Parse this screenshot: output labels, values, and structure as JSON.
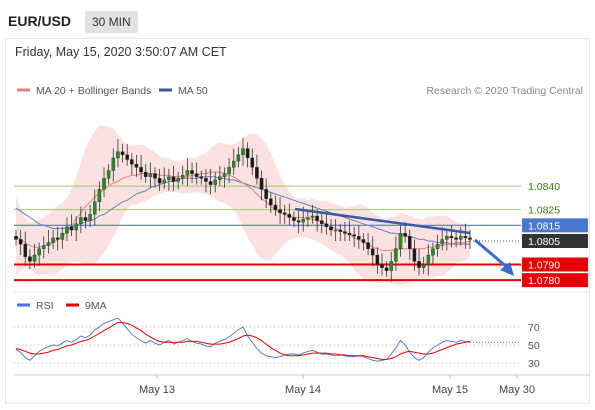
{
  "header": {
    "pair": "EUR/USD",
    "timeframe": "30 MIN",
    "datetime": "Friday, May 15, 2020 3:50:07 AM CET"
  },
  "legend": {
    "ma20_bb": "MA 20 + Bollinger Bands",
    "ma50": "MA 50",
    "credit": "Research © 2020 Trading Central",
    "rsi": "RSI",
    "rsi_ma": "9MA"
  },
  "colors": {
    "candle": "#2a8a2a",
    "ma20": "#e88080",
    "bollinger_fill": "#fbdcdc",
    "ma50": "#7080b8",
    "green_level": "#9ccb6a",
    "blue_level": "#4a78d0",
    "red_level": "#e80000",
    "current": "#333333",
    "rsi": "#4a6fd8",
    "rsi_ma": "#e80000"
  },
  "chart_data": [
    {
      "type": "candlestick",
      "x_labels": [
        "May 13",
        "May 14",
        "May 15",
        "May 30"
      ],
      "y_range": [
        1.0775,
        1.0895
      ],
      "levels": [
        {
          "value": 1.084,
          "label": "1.0840",
          "kind": "resistance-minor"
        },
        {
          "value": 1.0825,
          "label": "1.0825",
          "kind": "resistance-minor"
        },
        {
          "value": 1.0815,
          "label": "1.0815",
          "kind": "pivot"
        },
        {
          "value": 1.0805,
          "label": "1.0805",
          "kind": "current"
        },
        {
          "value": 1.079,
          "label": "1.0790",
          "kind": "support"
        },
        {
          "value": 1.078,
          "label": "1.0780",
          "kind": "support"
        }
      ],
      "close_series": [
        1.0806,
        1.0803,
        1.0795,
        1.0792,
        1.0796,
        1.08,
        1.0802,
        1.0804,
        1.0807,
        1.0806,
        1.081,
        1.0814,
        1.0812,
        1.0816,
        1.082,
        1.0818,
        1.0822,
        1.083,
        1.0838,
        1.0845,
        1.085,
        1.0858,
        1.0862,
        1.086,
        1.0857,
        1.0854,
        1.0852,
        1.0849,
        1.0846,
        1.0848,
        1.0845,
        1.0842,
        1.0844,
        1.0846,
        1.0843,
        1.0845,
        1.0847,
        1.085,
        1.0848,
        1.0846,
        1.0845,
        1.0843,
        1.0841,
        1.0844,
        1.0846,
        1.0848,
        1.0852,
        1.0856,
        1.086,
        1.0864,
        1.0858,
        1.0852,
        1.0845,
        1.0838,
        1.0832,
        1.0828,
        1.0825,
        1.0823,
        1.0822,
        1.082,
        1.0818,
        1.0817,
        1.0819,
        1.082,
        1.0821,
        1.0818,
        1.0816,
        1.0814,
        1.0812,
        1.0812,
        1.0811,
        1.081,
        1.0809,
        1.0808,
        1.0806,
        1.0804,
        1.08,
        1.0796,
        1.079,
        1.0788,
        1.0786,
        1.0792,
        1.08,
        1.081,
        1.0808,
        1.08,
        1.0792,
        1.0788,
        1.079,
        1.0796,
        1.08,
        1.0803,
        1.0806,
        1.0808,
        1.0807,
        1.0806,
        1.0808,
        1.0807,
        1.0806
      ],
      "ma20_series": [
        1.0808,
        1.0806,
        1.0804,
        1.0802,
        1.0801,
        1.0801,
        1.0802,
        1.0803,
        1.0804,
        1.0806,
        1.0808,
        1.0811,
        1.0815,
        1.0819,
        1.0823,
        1.0827,
        1.083,
        1.0833,
        1.0836,
        1.0838,
        1.084,
        1.0842,
        1.0843,
        1.0845,
        1.0846,
        1.0847,
        1.0847,
        1.0848,
        1.0848,
        1.0848,
        1.0848,
        1.0847,
        1.0847,
        1.0847,
        1.0846,
        1.0846,
        1.0846,
        1.0846,
        1.0847,
        1.0847,
        1.0848,
        1.0848,
        1.0849,
        1.0849,
        1.0849,
        1.0848,
        1.0847,
        1.0846,
        1.0844,
        1.0842,
        1.084,
        1.0838,
        1.0835,
        1.0832,
        1.083,
        1.0827,
        1.0825,
        1.0823,
        1.0822,
        1.0821,
        1.082,
        1.082,
        1.082,
        1.0819,
        1.0819,
        1.0818,
        1.0817,
        1.0816,
        1.0814,
        1.0813,
        1.0812,
        1.081,
        1.0809,
        1.0807,
        1.0806,
        1.0804,
        1.0803,
        1.0801,
        1.08,
        1.0799,
        1.0799,
        1.0799,
        1.0799,
        1.08,
        1.08,
        1.08,
        1.08,
        1.08,
        1.08,
        1.0801,
        1.0801,
        1.0802,
        1.0802,
        1.0803,
        1.0803,
        1.0804,
        1.0804,
        1.0804,
        1.0805
      ],
      "ma50_series": [
        1.0826,
        1.0824,
        1.0822,
        1.082,
        1.0818,
        1.0816,
        1.0815,
        1.0814,
        1.0813,
        1.0813,
        1.0813,
        1.0813,
        1.0814,
        1.0815,
        1.0816,
        1.0817,
        1.0818,
        1.0819,
        1.0821,
        1.0822,
        1.0824,
        1.0826,
        1.0828,
        1.083,
        1.0831,
        1.0833,
        1.0835,
        1.0836,
        1.0837,
        1.0839,
        1.084,
        1.0841,
        1.0842,
        1.0843,
        1.0843,
        1.0844,
        1.0845,
        1.0845,
        1.0845,
        1.0845,
        1.0846,
        1.0846,
        1.0846,
        1.0846,
        1.0845,
        1.0845,
        1.0844,
        1.0844,
        1.0843,
        1.0842,
        1.0841,
        1.084,
        1.0839,
        1.0838,
        1.0837,
        1.0836,
        1.0835,
        1.0834,
        1.0833,
        1.0832,
        1.0831,
        1.083,
        1.0829,
        1.0828,
        1.0827,
        1.0826,
        1.0825,
        1.0824,
        1.0823,
        1.0822,
        1.0821,
        1.082,
        1.0819,
        1.0818,
        1.0817,
        1.0816,
        1.0815,
        1.0814,
        1.0813,
        1.0812,
        1.0811,
        1.081,
        1.081,
        1.0809,
        1.0808,
        1.0808,
        1.0807,
        1.0806,
        1.0806,
        1.0805,
        1.0805,
        1.0804,
        1.0804,
        1.0804,
        1.0803,
        1.0803,
        1.0803,
        1.0803,
        1.0803
      ]
    },
    {
      "type": "line",
      "title": "RSI",
      "y_ticks": [
        70,
        50,
        30
      ],
      "y_range": [
        20,
        80
      ],
      "rsi_series": [
        45,
        42,
        36,
        33,
        38,
        43,
        46,
        48,
        50,
        49,
        52,
        55,
        53,
        56,
        60,
        58,
        61,
        67,
        70,
        74,
        76,
        78,
        80,
        74,
        68,
        62,
        58,
        55,
        52,
        55,
        52,
        50,
        53,
        55,
        51,
        53,
        55,
        57,
        54,
        52,
        51,
        49,
        48,
        52,
        54,
        56,
        59,
        63,
        67,
        70,
        60,
        53,
        46,
        41,
        38,
        37,
        36,
        37,
        39,
        40,
        40,
        39,
        41,
        43,
        44,
        42,
        40,
        40,
        39,
        38,
        39,
        38,
        37,
        37,
        38,
        37,
        35,
        33,
        32,
        33,
        34,
        40,
        47,
        55,
        50,
        42,
        36,
        33,
        36,
        42,
        47,
        50,
        53,
        55,
        54,
        53,
        55,
        54,
        53
      ],
      "rsi_ma_series": [
        46,
        45,
        43,
        41,
        40,
        40,
        41,
        42,
        44,
        45,
        47,
        49,
        50,
        52,
        54,
        55,
        57,
        60,
        63,
        66,
        69,
        72,
        75,
        75,
        74,
        72,
        69,
        66,
        62,
        59,
        56,
        54,
        53,
        53,
        53,
        53,
        53,
        54,
        54,
        54,
        53,
        52,
        51,
        51,
        51,
        52,
        53,
        55,
        57,
        60,
        61,
        60,
        58,
        55,
        51,
        47,
        44,
        41,
        39,
        38,
        38,
        38,
        39,
        40,
        41,
        41,
        41,
        41,
        40,
        40,
        39,
        39,
        38,
        38,
        38,
        38,
        37,
        36,
        35,
        34,
        34,
        35,
        37,
        40,
        42,
        43,
        42,
        41,
        40,
        40,
        41,
        43,
        45,
        47,
        49,
        51,
        52,
        53,
        54
      ]
    }
  ]
}
